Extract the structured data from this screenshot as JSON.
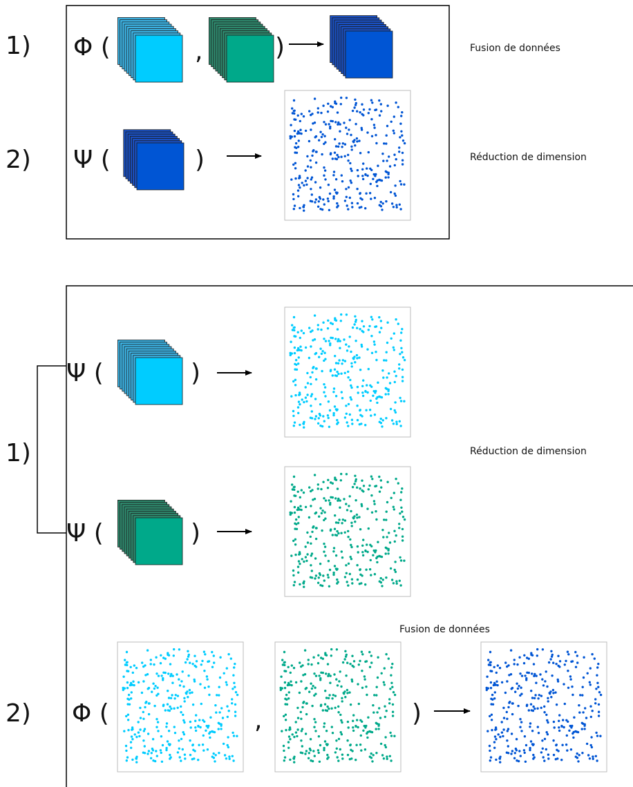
{
  "colors": {
    "cyan": "#00ccff",
    "cyan_back": "#3cb4e6",
    "green": "#00a98a",
    "green_back": "#2e8a6e",
    "blue": "#0055d4",
    "blue_back": "#1a4fbf",
    "frame": "#000000",
    "scatter_border": "#bbbbbb"
  },
  "top_panel": {
    "step1_number": "1)",
    "step1_phi": "Φ (",
    "step1_comma": ",",
    "step1_close": ")",
    "step1_caption": "Fusion de données",
    "step2_number": "2)",
    "step2_psi": "Ψ (",
    "step2_close": ")",
    "step2_caption": "Réduction de dimension",
    "step1_icons": [
      "cyan-image-stack-icon",
      "green-image-stack-icon",
      "blue-image-stack-icon"
    ],
    "step2_icons": [
      "blue-image-stack-icon",
      "blue-scatter-plot-icon"
    ]
  },
  "bottom_panel": {
    "step1_number": "1)",
    "psi_cyan": "Ψ (",
    "psi_cyan_close": ")",
    "psi_green": "Ψ (",
    "psi_green_close": ")",
    "step1_caption": "Réduction de dimension",
    "step2_caption": "Fusion de données",
    "step2_number": "2)",
    "step2_phi": "Φ (",
    "step2_comma": ",",
    "step2_close": ")",
    "step1_icons": [
      "cyan-image-stack-icon",
      "cyan-scatter-plot-icon",
      "green-image-stack-icon",
      "green-scatter-plot-icon"
    ],
    "step2_icons": [
      "cyan-scatter-plot-icon",
      "green-scatter-plot-icon",
      "blue-scatter-plot-icon"
    ]
  }
}
